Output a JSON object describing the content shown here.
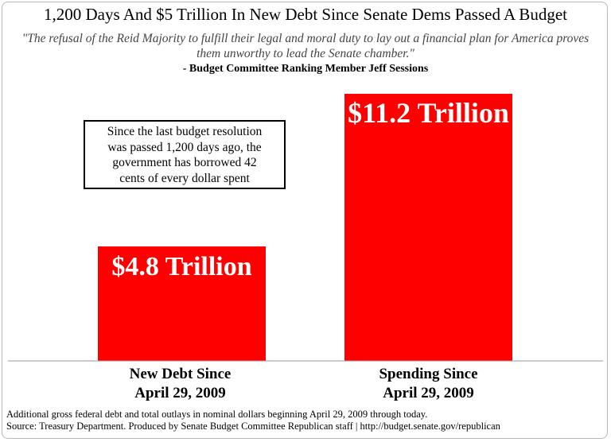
{
  "chart_data": {
    "type": "bar",
    "title": "1,200 Days And $5 Trillion In New Debt Since Senate Dems Passed A Budget",
    "quote": "\"The refusal of the Reid Majority to fulfill their legal and moral duty to lay out a financial plan for America proves them unworthy to lead the Senate chamber.\"",
    "attribution": "- Budget Committee Ranking Member Jeff Sessions",
    "categories": [
      "New Debt Since April 29, 2009",
      "Spending Since April 29, 2009"
    ],
    "category_lines": [
      [
        "New Debt Since",
        "April 29, 2009"
      ],
      [
        "Spending Since",
        "April 29, 2009"
      ]
    ],
    "values": [
      4.8,
      11.2
    ],
    "value_labels": [
      "$4.8 Trillion",
      "$11.2 Trillion"
    ],
    "units": "Trillion dollars",
    "ylim": [
      0,
      11.2
    ],
    "bar_color": "#ff0000",
    "value_label_color": "#ffffff",
    "annotation": "Since the last budget resolution was passed 1,200 days ago, the government has borrowed 42 cents of every dollar spent",
    "annotation_lines": [
      "Since the last budget resolution",
      "was passed 1,200 days ago, the",
      "government has borrowed 42",
      "cents of every dollar spent"
    ],
    "footnote_lines": [
      "Additional gross federal debt and total outlays in nominal dollars beginning April 29, 2009 through today.",
      "Source: Treasury Department. Produced by Senate Budget Committee Republican staff | http://budget.senate.gov/republican"
    ]
  }
}
